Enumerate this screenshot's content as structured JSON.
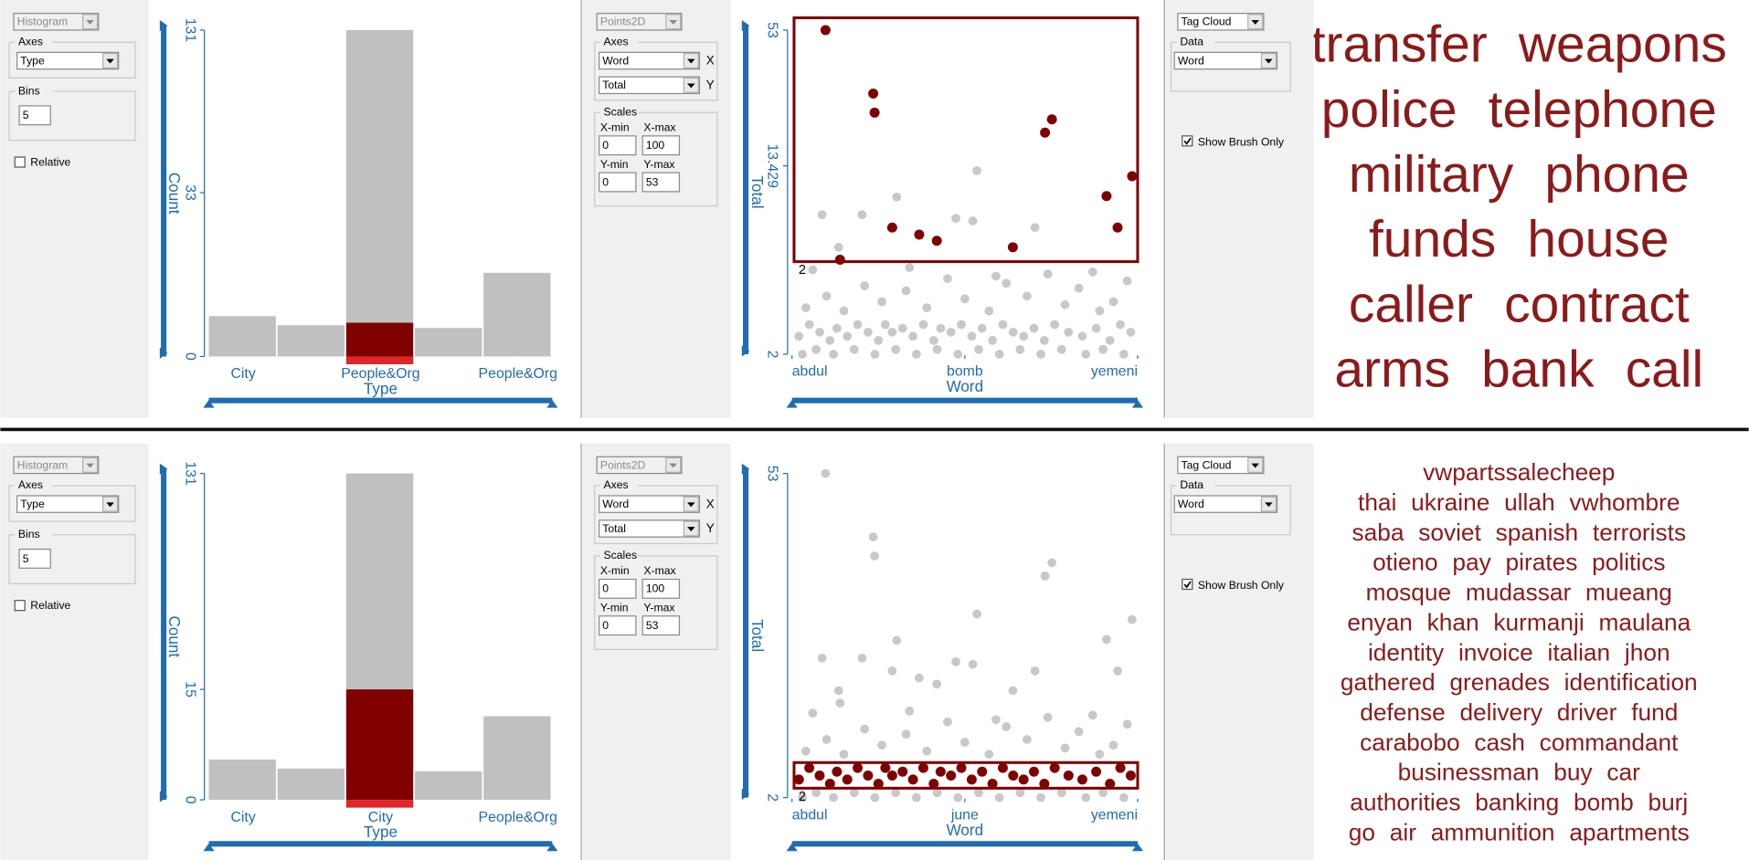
{
  "style": {
    "bar": "#c0c0c0",
    "brushed": "#800000",
    "selected": "#e0262b",
    "axis": "#1f6cb0",
    "point": "#c8c8c8",
    "tag": "#8b1a1a"
  },
  "dataset": {
    "points": [
      [
        9.7,
        53
      ],
      [
        23.5,
        27.9
      ],
      [
        23.9,
        23
      ],
      [
        29,
        7.2
      ],
      [
        36.8,
        6.7
      ],
      [
        41.9,
        6.3
      ],
      [
        63.9,
        5.9
      ],
      [
        73.2,
        18.8
      ],
      [
        75.2,
        21.5
      ],
      [
        91,
        9.9
      ],
      [
        94.2,
        7.2
      ],
      [
        98.4,
        12.1
      ],
      [
        13.9,
        5.2
      ],
      [
        8.7,
        8.2
      ],
      [
        20.3,
        8.2
      ],
      [
        30.3,
        9.8
      ],
      [
        47.4,
        7.9
      ],
      [
        53.5,
        12.8
      ],
      [
        52.3,
        7.7
      ],
      [
        70.3,
        7.2
      ],
      [
        13.5,
        5.9
      ],
      [
        2,
        2.4
      ],
      [
        5,
        2.7
      ],
      [
        8,
        2.5
      ],
      [
        11,
        2.3
      ],
      [
        13,
        2.6
      ],
      [
        16,
        2.4
      ],
      [
        19,
        2.7
      ],
      [
        22,
        2.5
      ],
      [
        25,
        2.3
      ],
      [
        27,
        2.7
      ],
      [
        29,
        2.5
      ],
      [
        32,
        2.6
      ],
      [
        35,
        2.4
      ],
      [
        38,
        2.7
      ],
      [
        41,
        2.3
      ],
      [
        43,
        2.6
      ],
      [
        46,
        2.5
      ],
      [
        49,
        2.7
      ],
      [
        52,
        2.4
      ],
      [
        55,
        2.6
      ],
      [
        58,
        2.3
      ],
      [
        61,
        2.7
      ],
      [
        64,
        2.5
      ],
      [
        67,
        2.4
      ],
      [
        70,
        2.6
      ],
      [
        73,
        2.3
      ],
      [
        76,
        2.7
      ],
      [
        80,
        2.5
      ],
      [
        84,
        2.4
      ],
      [
        88,
        2.6
      ],
      [
        92,
        2.3
      ],
      [
        95,
        2.7
      ],
      [
        98,
        2.5
      ],
      [
        3,
        2
      ],
      [
        7,
        2.1
      ],
      [
        12,
        2
      ],
      [
        18,
        2.1
      ],
      [
        24,
        2
      ],
      [
        30,
        2.1
      ],
      [
        36,
        2
      ],
      [
        42,
        2.1
      ],
      [
        48,
        2
      ],
      [
        54,
        2.1
      ],
      [
        60,
        2
      ],
      [
        66,
        2.1
      ],
      [
        72,
        2
      ],
      [
        78,
        2.1
      ],
      [
        85,
        2
      ],
      [
        90,
        2.1
      ],
      [
        96,
        2
      ],
      [
        4,
        3.2
      ],
      [
        10,
        3.6
      ],
      [
        15,
        3.1
      ],
      [
        21,
        4
      ],
      [
        26,
        3.4
      ],
      [
        33,
        3.8
      ],
      [
        39,
        3.2
      ],
      [
        45,
        4.3
      ],
      [
        50,
        3.5
      ],
      [
        57,
        3.1
      ],
      [
        62,
        4.1
      ],
      [
        68,
        3.6
      ],
      [
        74,
        4.5
      ],
      [
        79,
        3.3
      ],
      [
        83,
        3.9
      ],
      [
        87,
        4.6
      ],
      [
        93,
        3.4
      ],
      [
        97,
        4.2
      ],
      [
        6,
        4.7
      ],
      [
        34,
        4.8
      ],
      [
        59,
        4.4
      ],
      [
        89,
        3.1
      ]
    ]
  },
  "views": [
    {
      "histogram": {
        "control": "Histogram",
        "axes_label": "Axes",
        "axis_field": "Type",
        "bins_label": "Bins",
        "bins": 5,
        "relative_label": "Relative",
        "relative": false,
        "ylabel": "Count",
        "xlabel": "Type",
        "yscale": "sqrt",
        "ylim": [
          0,
          131
        ],
        "yticks": [
          0,
          33,
          131
        ],
        "bin_labels": [
          "City",
          null,
          "People&Org",
          null,
          "People&Org"
        ],
        "counts": [
          2,
          1.2,
          131,
          1,
          8.6
        ],
        "brushed_counts": [
          0,
          0,
          1.4,
          0,
          0
        ],
        "selected_bin": 2
      },
      "scatter": {
        "control": "Points2D",
        "axes_label": "Axes",
        "x_field": "Word",
        "x_tag": "X",
        "y_field": "Total",
        "y_tag": "Y",
        "scales_label": "Scales",
        "xmin_label": "X-min",
        "xmax_label": "X-max",
        "ymin_label": "Y-min",
        "ymax_label": "Y-max",
        "xmin": 0,
        "xmax": 100,
        "ymin": 0,
        "ymax": 53,
        "xlabel": "Word",
        "ylabel": "Total",
        "xlim": [
          0,
          100
        ],
        "ylim": [
          2,
          53
        ],
        "yscale": "log",
        "xticks": [
          {
            "value": 0,
            "label": "abdul"
          },
          {
            "value": 50,
            "label": "bomb"
          },
          {
            "value": 100,
            "label": "yemeni"
          }
        ],
        "yticks": [
          2,
          13.429,
          53
        ],
        "brushed": [
          0,
          1,
          2,
          3,
          4,
          5,
          6,
          7,
          8,
          9,
          10,
          11,
          12
        ],
        "brush": {
          "x": [
            0.6,
            100
          ],
          "y": [
            5.1,
            60
          ]
        },
        "brush_label": 2
      },
      "tagcloud": {
        "control": "Tag Cloud",
        "data_label": "Data",
        "field": "Word",
        "show_brush_only_label": "Show Brush Only",
        "show_brush_only": true,
        "lines": [
          [
            "transfer",
            "weapons"
          ],
          [
            "police",
            "telephone"
          ],
          [
            "military",
            "phone"
          ],
          [
            "funds",
            "house"
          ],
          [
            "caller",
            "contract"
          ],
          [
            "arms",
            "bank",
            "call"
          ]
        ]
      }
    },
    {
      "histogram": {
        "control": "Histogram",
        "axes_label": "Axes",
        "axis_field": "Type",
        "bins_label": "Bins",
        "bins": 5,
        "relative_label": "Relative",
        "relative": false,
        "ylabel": "Count",
        "xlabel": "Type",
        "yscale": "sqrt",
        "ylim": [
          0,
          131
        ],
        "yticks": [
          0,
          15,
          131
        ],
        "bin_labels": [
          "City",
          null,
          "City",
          null,
          "People&Org"
        ],
        "counts": [
          2,
          1.2,
          131,
          1,
          8.6
        ],
        "brushed_counts": [
          0,
          0,
          15,
          0,
          0
        ],
        "selected_bin": 2
      },
      "scatter": {
        "control": "Points2D",
        "axes_label": "Axes",
        "x_field": "Word",
        "x_tag": "X",
        "y_field": "Total",
        "y_tag": "Y",
        "scales_label": "Scales",
        "xmin_label": "X-min",
        "xmax_label": "X-max",
        "ymin_label": "Y-min",
        "ymax_label": "Y-max",
        "xmin": 0,
        "xmax": 100,
        "ymin": 0,
        "ymax": 53,
        "xlabel": "Word",
        "ylabel": "Total",
        "xlim": [
          0,
          100
        ],
        "ylim": [
          2,
          53
        ],
        "yscale": "log",
        "xticks": [
          {
            "value": 0,
            "label": "abdul"
          },
          {
            "value": 50,
            "label": "june"
          },
          {
            "value": 100,
            "label": "yemeni"
          }
        ],
        "yticks": [
          2,
          53
        ],
        "brushed": [
          21,
          22,
          23,
          24,
          25,
          26,
          27,
          28,
          29,
          30,
          31,
          32,
          33,
          34,
          35,
          36,
          37,
          38,
          39,
          40,
          41,
          42,
          43,
          44,
          45,
          46,
          47,
          48,
          49,
          50,
          51,
          52,
          53
        ],
        "brush": {
          "x": [
            0.6,
            100
          ],
          "y": [
            2.2,
            2.85
          ]
        },
        "brush_label": 2
      },
      "tagcloud": {
        "control": "Tag Cloud",
        "data_label": "Data",
        "field": "Word",
        "show_brush_only_label": "Show Brush Only",
        "show_brush_only": true,
        "lines": [
          [
            "vwpartssalecheep"
          ],
          [
            "thai",
            "ukraine",
            "ullah",
            "vwhombre"
          ],
          [
            "saba",
            "soviet",
            "spanish",
            "terrorists"
          ],
          [
            "otieno",
            "pay",
            "pirates",
            "politics"
          ],
          [
            "mosque",
            "mudassar",
            "mueang"
          ],
          [
            "enyan",
            "khan",
            "kurmanji",
            "maulana"
          ],
          [
            "identity",
            "invoice",
            "italian",
            "jhon"
          ],
          [
            "gathered",
            "grenades",
            "identification"
          ],
          [
            "defense",
            "delivery",
            "driver",
            "fund"
          ],
          [
            "carabobo",
            "cash",
            "commandant"
          ],
          [
            "businessman",
            "buy",
            "car"
          ],
          [
            "authorities",
            "banking",
            "bomb",
            "burj"
          ],
          [
            "go",
            "air",
            "ammunition",
            "apartments"
          ]
        ]
      }
    }
  ]
}
